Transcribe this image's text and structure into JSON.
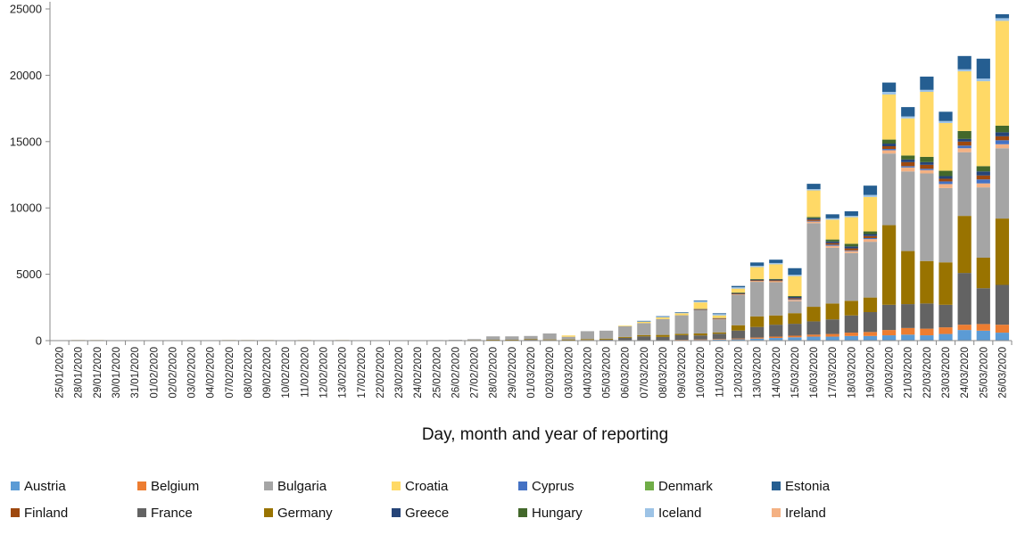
{
  "chart_data": {
    "type": "bar",
    "stacked": true,
    "xlabel": "Day, month and year of reporting",
    "ylabel": "",
    "ylim": [
      0,
      25000
    ],
    "yticks": [
      0,
      5000,
      10000,
      15000,
      20000,
      25000
    ],
    "grid": false,
    "legend_position": "bottom",
    "categories": [
      "25/01/2020",
      "28/01/2020",
      "29/01/2020",
      "30/01/2020",
      "31/01/2020",
      "01/02/2020",
      "02/02/2020",
      "03/02/2020",
      "04/02/2020",
      "07/02/2020",
      "08/02/2020",
      "09/02/2020",
      "10/02/2020",
      "11/02/2020",
      "12/02/2020",
      "13/02/2020",
      "17/02/2020",
      "22/02/2020",
      "23/02/2020",
      "24/02/2020",
      "25/02/2020",
      "26/02/2020",
      "27/02/2020",
      "28/02/2020",
      "29/02/2020",
      "01/03/2020",
      "02/03/2020",
      "03/03/2020",
      "04/03/2020",
      "05/03/2020",
      "06/03/2020",
      "07/03/2020",
      "08/03/2020",
      "09/03/2020",
      "10/03/2020",
      "11/03/2020",
      "12/03/2020",
      "13/03/2020",
      "14/03/2020",
      "15/03/2020",
      "16/03/2020",
      "17/03/2020",
      "18/03/2020",
      "19/03/2020",
      "20/03/2020",
      "21/03/2020",
      "22/03/2020",
      "23/03/2020",
      "24/03/2020",
      "25/03/2020",
      "26/03/2020"
    ],
    "series": [
      {
        "name": "Austria",
        "color": "#5b9bd5",
        "values": [
          0,
          0,
          0,
          0,
          0,
          0,
          0,
          0,
          0,
          0,
          0,
          0,
          0,
          0,
          0,
          0,
          0,
          0,
          0,
          0,
          0,
          0,
          0,
          0,
          0,
          0,
          0,
          0,
          0,
          0,
          5,
          10,
          20,
          40,
          60,
          80,
          100,
          150,
          200,
          250,
          300,
          300,
          350,
          350,
          400,
          450,
          400,
          500,
          800,
          750,
          600
        ]
      },
      {
        "name": "Belgium",
        "color": "#ed7d31",
        "values": [
          0,
          0,
          0,
          0,
          0,
          0,
          0,
          0,
          0,
          0,
          0,
          0,
          0,
          0,
          0,
          0,
          0,
          0,
          0,
          0,
          0,
          0,
          0,
          0,
          0,
          0,
          0,
          0,
          0,
          0,
          5,
          10,
          10,
          20,
          30,
          40,
          60,
          80,
          100,
          120,
          150,
          200,
          250,
          300,
          400,
          500,
          500,
          500,
          400,
          500,
          600
        ]
      },
      {
        "name": "France",
        "color": "#636363",
        "values": [
          20,
          20,
          20,
          20,
          10,
          10,
          10,
          10,
          10,
          20,
          20,
          20,
          10,
          20,
          10,
          20,
          10,
          0,
          0,
          0,
          0,
          0,
          30,
          40,
          40,
          60,
          50,
          30,
          50,
          80,
          200,
          300,
          250,
          350,
          300,
          400,
          600,
          800,
          900,
          900,
          1000,
          1100,
          1300,
          1500,
          1900,
          1800,
          1900,
          1700,
          3900,
          2700,
          3000
        ]
      },
      {
        "name": "Germany",
        "color": "#997300",
        "values": [
          10,
          20,
          20,
          10,
          10,
          20,
          20,
          20,
          20,
          20,
          20,
          20,
          20,
          20,
          20,
          20,
          20,
          20,
          20,
          20,
          20,
          20,
          20,
          30,
          30,
          40,
          40,
          60,
          60,
          70,
          70,
          100,
          150,
          100,
          150,
          100,
          400,
          800,
          700,
          800,
          1100,
          1200,
          1100,
          1100,
          6000,
          4000,
          3200,
          3200,
          4300,
          2300,
          5000
        ]
      },
      {
        "name": "Bulgaria",
        "color": "#a5a5a5",
        "values": [
          0,
          0,
          0,
          0,
          0,
          0,
          0,
          0,
          0,
          0,
          0,
          0,
          0,
          0,
          0,
          0,
          0,
          0,
          0,
          0,
          20,
          40,
          60,
          250,
          250,
          250,
          450,
          200,
          600,
          600,
          800,
          900,
          1200,
          1400,
          1800,
          1000,
          2300,
          2600,
          2500,
          900,
          6300,
          4200,
          3600,
          4200,
          5400,
          6000,
          6600,
          5600,
          4800,
          5300,
          5300
        ]
      },
      {
        "name": "Ireland",
        "color": "#f4b183",
        "values": [
          0,
          0,
          0,
          0,
          0,
          0,
          0,
          0,
          0,
          0,
          0,
          0,
          0,
          0,
          0,
          0,
          0,
          0,
          0,
          0,
          0,
          0,
          0,
          0,
          0,
          0,
          0,
          0,
          0,
          0,
          0,
          0,
          0,
          0,
          0,
          20,
          30,
          60,
          80,
          100,
          120,
          150,
          150,
          200,
          250,
          300,
          250,
          300,
          300,
          300,
          300
        ]
      },
      {
        "name": "Cyprus",
        "color": "#4472c4",
        "values": [
          0,
          0,
          0,
          0,
          0,
          0,
          0,
          0,
          0,
          0,
          0,
          0,
          0,
          0,
          0,
          0,
          0,
          0,
          0,
          0,
          0,
          0,
          0,
          0,
          0,
          0,
          0,
          0,
          0,
          0,
          0,
          0,
          0,
          0,
          0,
          0,
          0,
          0,
          0,
          50,
          50,
          80,
          50,
          80,
          100,
          100,
          100,
          200,
          200,
          300,
          300
        ]
      },
      {
        "name": "Finland",
        "color": "#9e480e",
        "values": [
          0,
          0,
          0,
          0,
          0,
          0,
          0,
          0,
          0,
          0,
          0,
          0,
          0,
          0,
          0,
          0,
          0,
          0,
          0,
          0,
          0,
          0,
          0,
          0,
          0,
          0,
          0,
          0,
          0,
          0,
          0,
          0,
          0,
          0,
          20,
          30,
          40,
          50,
          60,
          80,
          100,
          120,
          150,
          150,
          200,
          300,
          300,
          200,
          300,
          300,
          300
        ]
      },
      {
        "name": "Greece",
        "color": "#264478",
        "values": [
          0,
          0,
          0,
          0,
          0,
          0,
          0,
          0,
          0,
          0,
          0,
          0,
          0,
          0,
          0,
          0,
          0,
          0,
          0,
          0,
          0,
          0,
          0,
          0,
          0,
          0,
          0,
          0,
          0,
          0,
          0,
          0,
          0,
          0,
          20,
          30,
          60,
          50,
          60,
          100,
          100,
          120,
          150,
          150,
          200,
          200,
          200,
          200,
          200,
          300,
          300
        ]
      },
      {
        "name": "Hungary",
        "color": "#43682b",
        "values": [
          0,
          0,
          0,
          0,
          0,
          0,
          0,
          0,
          0,
          0,
          0,
          0,
          0,
          0,
          0,
          0,
          0,
          0,
          0,
          0,
          0,
          0,
          0,
          0,
          0,
          0,
          0,
          0,
          0,
          0,
          0,
          0,
          0,
          0,
          0,
          0,
          30,
          50,
          50,
          60,
          100,
          150,
          200,
          200,
          300,
          300,
          400,
          400,
          600,
          400,
          500
        ]
      },
      {
        "name": "Croatia",
        "color": "#ffd966",
        "values": [
          0,
          0,
          0,
          0,
          0,
          0,
          0,
          0,
          0,
          0,
          0,
          0,
          0,
          0,
          0,
          0,
          0,
          0,
          0,
          0,
          0,
          0,
          0,
          0,
          0,
          0,
          0,
          100,
          0,
          0,
          50,
          100,
          120,
          150,
          500,
          200,
          300,
          900,
          1100,
          1500,
          2000,
          1500,
          2000,
          2600,
          3400,
          2800,
          4900,
          3600,
          4500,
          6400,
          7900
        ]
      },
      {
        "name": "Iceland",
        "color": "#9dc3e6",
        "values": [
          0,
          0,
          0,
          0,
          0,
          0,
          0,
          0,
          0,
          0,
          0,
          0,
          0,
          0,
          0,
          0,
          0,
          0,
          0,
          0,
          0,
          0,
          0,
          0,
          0,
          0,
          0,
          0,
          0,
          0,
          0,
          50,
          60,
          50,
          100,
          100,
          100,
          100,
          100,
          100,
          100,
          100,
          100,
          150,
          200,
          150,
          150,
          150,
          150,
          200,
          200
        ]
      },
      {
        "name": "Denmark",
        "color": "#70ad47",
        "values": [
          0,
          0,
          0,
          0,
          0,
          0,
          0,
          0,
          0,
          0,
          0,
          0,
          0,
          0,
          0,
          0,
          0,
          0,
          0,
          0,
          0,
          0,
          0,
          0,
          0,
          0,
          0,
          0,
          0,
          0,
          0,
          0,
          0,
          0,
          0,
          0,
          0,
          0,
          0,
          0,
          0,
          0,
          0,
          0,
          0,
          0,
          0,
          0,
          0,
          0,
          0
        ]
      },
      {
        "name": "Estonia",
        "color": "#255e91",
        "values": [
          0,
          0,
          0,
          0,
          0,
          0,
          0,
          0,
          0,
          0,
          0,
          0,
          0,
          0,
          0,
          0,
          0,
          0,
          0,
          0,
          0,
          0,
          0,
          0,
          0,
          0,
          0,
          0,
          0,
          0,
          0,
          20,
          30,
          30,
          50,
          60,
          100,
          250,
          250,
          500,
          400,
          300,
          350,
          700,
          700,
          700,
          1000,
          700,
          1000,
          1500,
          300
        ]
      }
    ],
    "legend_order": [
      "Austria",
      "Belgium",
      "Bulgaria",
      "Croatia",
      "Cyprus",
      "Denmark",
      "Estonia",
      "Finland",
      "France",
      "Germany",
      "Greece",
      "Hungary",
      "Iceland",
      "Ireland"
    ]
  }
}
